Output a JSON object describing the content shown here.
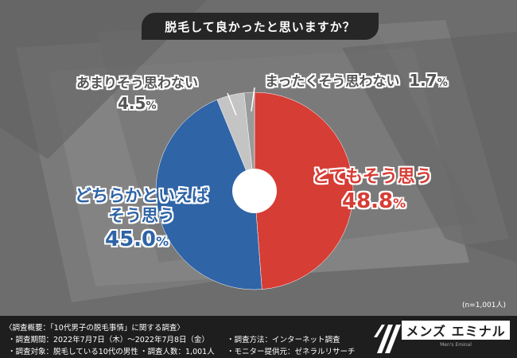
{
  "title": "脱毛して良かったと思いますか？",
  "chart_data": {
    "type": "pie",
    "categories": [
      "とてもそう思う",
      "どちらかといえばそう思う",
      "あまりそう思わない",
      "まったくそう思わない"
    ],
    "values": [
      48.8,
      45.0,
      4.5,
      1.7
    ],
    "unit": "%",
    "colors": [
      "#d63d35",
      "#2f64a6",
      "#c4c4c4",
      "#9a9a9a"
    ],
    "start_angle_deg": 0,
    "direction": "clockwise",
    "donut_hole": true
  },
  "labels": {
    "very": {
      "line1": "とてもそう思う",
      "value": "48.8",
      "unit": "%"
    },
    "somewhat": {
      "line1": "どちらかといえば",
      "line2": "そう思う",
      "value": "45.0",
      "unit": "%"
    },
    "not_much": {
      "line1": "あまりそう思わない",
      "value": "4.5",
      "unit": "%"
    },
    "not_at_all": {
      "line1": "まったくそう思わない",
      "value": "1.7",
      "unit": "%"
    }
  },
  "sample_size": "(n=1,001人)",
  "footer": {
    "overview": "〈調査概要：「10代男子の脱毛事情」に関する調査〉",
    "period": "・調査期間：2022年7月7日（木）〜2022年7月8日（金）",
    "target": "・調査対象：脱毛している10代の男性",
    "count": "・調査人数：1,001人",
    "method": "・調査方法：インターネット調査",
    "provider": "・モニター提供元：ゼネラルリサーチ"
  },
  "logo": {
    "main": "メンズ エミナル",
    "sub": "Men's Eminal"
  }
}
